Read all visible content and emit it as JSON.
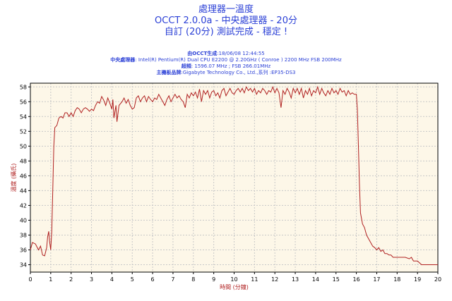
{
  "header": {
    "title_line1": "處理器一溫度",
    "title_line2": "OCCT 2.0.0a - 中央處理器 - 20分",
    "title_line3": "自訂 (20分) 測試完成 - 穩定 !"
  },
  "info": {
    "generated_label": "由OCCT生成",
    "generated_value": ":18/06/08 12:44:55",
    "cpu_label": "中央處理器",
    "cpu_value": ": Intel(R) Pentium(R) Dual CPU E2200 @ 2.20GHz ( Conroe ) 2200 MHz FSB 200MHz",
    "freq_label": "超頻",
    "freq_value": ": 1596.07 MHz ; FSB 266.01MHz",
    "board_label": "主機板品牌",
    "board_value": ":Gigabyte Technology Co., Ltd.,系列 :EP35-DS3"
  },
  "colors": {
    "plot_background": "#fdf7e8",
    "line": "#b02020",
    "grid": "#c8c8c8",
    "axis_text": "#000000",
    "axis_title": "#b02020",
    "header_text": "#2a3fd6"
  },
  "chart_data": {
    "type": "line",
    "xlabel": "時間 (分鐘)",
    "ylabel": "溫度 (攝氏)",
    "xlim": [
      0,
      20
    ],
    "ylim": [
      33,
      58.5
    ],
    "x_ticks": [
      0,
      1,
      2,
      3,
      4,
      5,
      6,
      7,
      8,
      9,
      10,
      11,
      12,
      13,
      14,
      15,
      16,
      17,
      18,
      19,
      20
    ],
    "y_ticks": [
      34,
      36,
      38,
      40,
      42,
      44,
      46,
      48,
      50,
      52,
      54,
      56,
      58
    ],
    "grid": true,
    "series": [
      {
        "color": "#b02020",
        "points": [
          [
            0.0,
            36.0
          ],
          [
            0.1,
            37.0
          ],
          [
            0.25,
            36.8
          ],
          [
            0.4,
            36.0
          ],
          [
            0.5,
            36.5
          ],
          [
            0.6,
            35.3
          ],
          [
            0.7,
            35.2
          ],
          [
            0.8,
            36.3
          ],
          [
            0.85,
            37.8
          ],
          [
            0.9,
            38.5
          ],
          [
            0.95,
            37.0
          ],
          [
            1.0,
            36.0
          ],
          [
            1.05,
            38.5
          ],
          [
            1.1,
            44.0
          ],
          [
            1.15,
            50.0
          ],
          [
            1.2,
            52.5
          ],
          [
            1.3,
            52.8
          ],
          [
            1.4,
            53.8
          ],
          [
            1.5,
            54.0
          ],
          [
            1.6,
            53.8
          ],
          [
            1.7,
            54.5
          ],
          [
            1.8,
            54.5
          ],
          [
            1.9,
            54.0
          ],
          [
            2.0,
            54.5
          ],
          [
            2.1,
            54.0
          ],
          [
            2.2,
            54.8
          ],
          [
            2.3,
            55.2
          ],
          [
            2.4,
            55.0
          ],
          [
            2.5,
            54.5
          ],
          [
            2.6,
            55.0
          ],
          [
            2.7,
            55.2
          ],
          [
            2.8,
            55.0
          ],
          [
            2.9,
            54.7
          ],
          [
            3.0,
            55.0
          ],
          [
            3.1,
            54.8
          ],
          [
            3.2,
            55.5
          ],
          [
            3.3,
            56.0
          ],
          [
            3.4,
            55.8
          ],
          [
            3.5,
            56.7
          ],
          [
            3.6,
            56.2
          ],
          [
            3.7,
            55.5
          ],
          [
            3.8,
            56.5
          ],
          [
            3.9,
            55.8
          ],
          [
            4.0,
            55.0
          ],
          [
            4.05,
            56.3
          ],
          [
            4.1,
            53.8
          ],
          [
            4.2,
            55.5
          ],
          [
            4.25,
            53.3
          ],
          [
            4.35,
            55.5
          ],
          [
            4.5,
            56.0
          ],
          [
            4.6,
            56.5
          ],
          [
            4.7,
            55.8
          ],
          [
            4.8,
            56.3
          ],
          [
            4.9,
            55.5
          ],
          [
            5.0,
            55.0
          ],
          [
            5.1,
            55.2
          ],
          [
            5.2,
            56.5
          ],
          [
            5.3,
            56.8
          ],
          [
            5.4,
            56.0
          ],
          [
            5.5,
            56.5
          ],
          [
            5.6,
            56.8
          ],
          [
            5.7,
            56.0
          ],
          [
            5.8,
            56.7
          ],
          [
            5.9,
            56.3
          ],
          [
            6.0,
            56.0
          ],
          [
            6.1,
            56.5
          ],
          [
            6.2,
            56.3
          ],
          [
            6.3,
            57.0
          ],
          [
            6.4,
            56.5
          ],
          [
            6.5,
            56.0
          ],
          [
            6.6,
            55.5
          ],
          [
            6.7,
            56.3
          ],
          [
            6.8,
            56.8
          ],
          [
            6.9,
            56.0
          ],
          [
            7.0,
            56.5
          ],
          [
            7.1,
            57.0
          ],
          [
            7.2,
            56.5
          ],
          [
            7.3,
            56.8
          ],
          [
            7.4,
            56.3
          ],
          [
            7.5,
            56.0
          ],
          [
            7.6,
            55.2
          ],
          [
            7.7,
            57.0
          ],
          [
            7.8,
            56.5
          ],
          [
            7.9,
            57.2
          ],
          [
            8.0,
            56.8
          ],
          [
            8.1,
            57.3
          ],
          [
            8.2,
            56.5
          ],
          [
            8.3,
            57.7
          ],
          [
            8.4,
            56.0
          ],
          [
            8.5,
            57.5
          ],
          [
            8.6,
            57.0
          ],
          [
            8.7,
            57.5
          ],
          [
            8.8,
            56.5
          ],
          [
            8.9,
            57.3
          ],
          [
            9.0,
            57.5
          ],
          [
            9.1,
            56.8
          ],
          [
            9.2,
            57.2
          ],
          [
            9.3,
            56.5
          ],
          [
            9.4,
            57.5
          ],
          [
            9.5,
            57.8
          ],
          [
            9.6,
            56.8
          ],
          [
            9.7,
            57.3
          ],
          [
            9.8,
            57.8
          ],
          [
            9.9,
            57.2
          ],
          [
            10.0,
            57.0
          ],
          [
            10.1,
            57.5
          ],
          [
            10.2,
            57.8
          ],
          [
            10.3,
            57.3
          ],
          [
            10.4,
            57.8
          ],
          [
            10.5,
            57.2
          ],
          [
            10.6,
            58.0
          ],
          [
            10.7,
            57.5
          ],
          [
            10.8,
            57.8
          ],
          [
            10.9,
            57.3
          ],
          [
            11.0,
            57.8
          ],
          [
            11.1,
            57.0
          ],
          [
            11.2,
            57.5
          ],
          [
            11.3,
            57.2
          ],
          [
            11.4,
            57.8
          ],
          [
            11.5,
            57.5
          ],
          [
            11.6,
            57.0
          ],
          [
            11.7,
            57.5
          ],
          [
            11.8,
            57.3
          ],
          [
            11.9,
            58.0
          ],
          [
            12.0,
            57.2
          ],
          [
            12.1,
            57.8
          ],
          [
            12.2,
            57.2
          ],
          [
            12.3,
            55.2
          ],
          [
            12.4,
            57.5
          ],
          [
            12.5,
            57.0
          ],
          [
            12.6,
            57.8
          ],
          [
            12.7,
            57.3
          ],
          [
            12.8,
            56.5
          ],
          [
            12.9,
            57.8
          ],
          [
            13.0,
            57.2
          ],
          [
            13.1,
            57.8
          ],
          [
            13.2,
            57.0
          ],
          [
            13.3,
            57.8
          ],
          [
            13.4,
            56.5
          ],
          [
            13.5,
            57.5
          ],
          [
            13.6,
            57.0
          ],
          [
            13.7,
            57.8
          ],
          [
            13.8,
            56.8
          ],
          [
            13.9,
            57.5
          ],
          [
            14.0,
            57.2
          ],
          [
            14.1,
            58.0
          ],
          [
            14.2,
            57.0
          ],
          [
            14.3,
            57.8
          ],
          [
            14.4,
            57.2
          ],
          [
            14.5,
            56.8
          ],
          [
            14.6,
            57.5
          ],
          [
            14.7,
            57.0
          ],
          [
            14.8,
            57.8
          ],
          [
            14.9,
            57.2
          ],
          [
            15.0,
            57.5
          ],
          [
            15.1,
            57.0
          ],
          [
            15.2,
            57.8
          ],
          [
            15.3,
            57.3
          ],
          [
            15.4,
            57.5
          ],
          [
            15.5,
            56.8
          ],
          [
            15.6,
            57.5
          ],
          [
            15.7,
            57.0
          ],
          [
            15.8,
            57.2
          ],
          [
            15.9,
            57.0
          ],
          [
            16.0,
            57.0
          ],
          [
            16.05,
            55.0
          ],
          [
            16.1,
            50.0
          ],
          [
            16.15,
            45.0
          ],
          [
            16.2,
            41.0
          ],
          [
            16.3,
            39.5
          ],
          [
            16.4,
            39.0
          ],
          [
            16.5,
            38.0
          ],
          [
            16.6,
            37.5
          ],
          [
            16.7,
            37.0
          ],
          [
            16.8,
            36.5
          ],
          [
            16.9,
            36.3
          ],
          [
            17.0,
            36.0
          ],
          [
            17.1,
            36.3
          ],
          [
            17.2,
            35.8
          ],
          [
            17.3,
            36.0
          ],
          [
            17.4,
            35.5
          ],
          [
            17.5,
            35.5
          ],
          [
            17.6,
            35.3
          ],
          [
            17.7,
            35.3
          ],
          [
            17.8,
            35.0
          ],
          [
            17.9,
            35.0
          ],
          [
            18.0,
            35.0
          ],
          [
            18.2,
            35.0
          ],
          [
            18.4,
            35.0
          ],
          [
            18.6,
            34.8
          ],
          [
            18.7,
            35.0
          ],
          [
            18.8,
            34.5
          ],
          [
            18.9,
            34.5
          ],
          [
            19.0,
            34.5
          ],
          [
            19.2,
            34.0
          ],
          [
            19.4,
            34.0
          ],
          [
            19.6,
            34.0
          ],
          [
            19.8,
            34.0
          ],
          [
            20.0,
            34.0
          ]
        ]
      }
    ]
  }
}
